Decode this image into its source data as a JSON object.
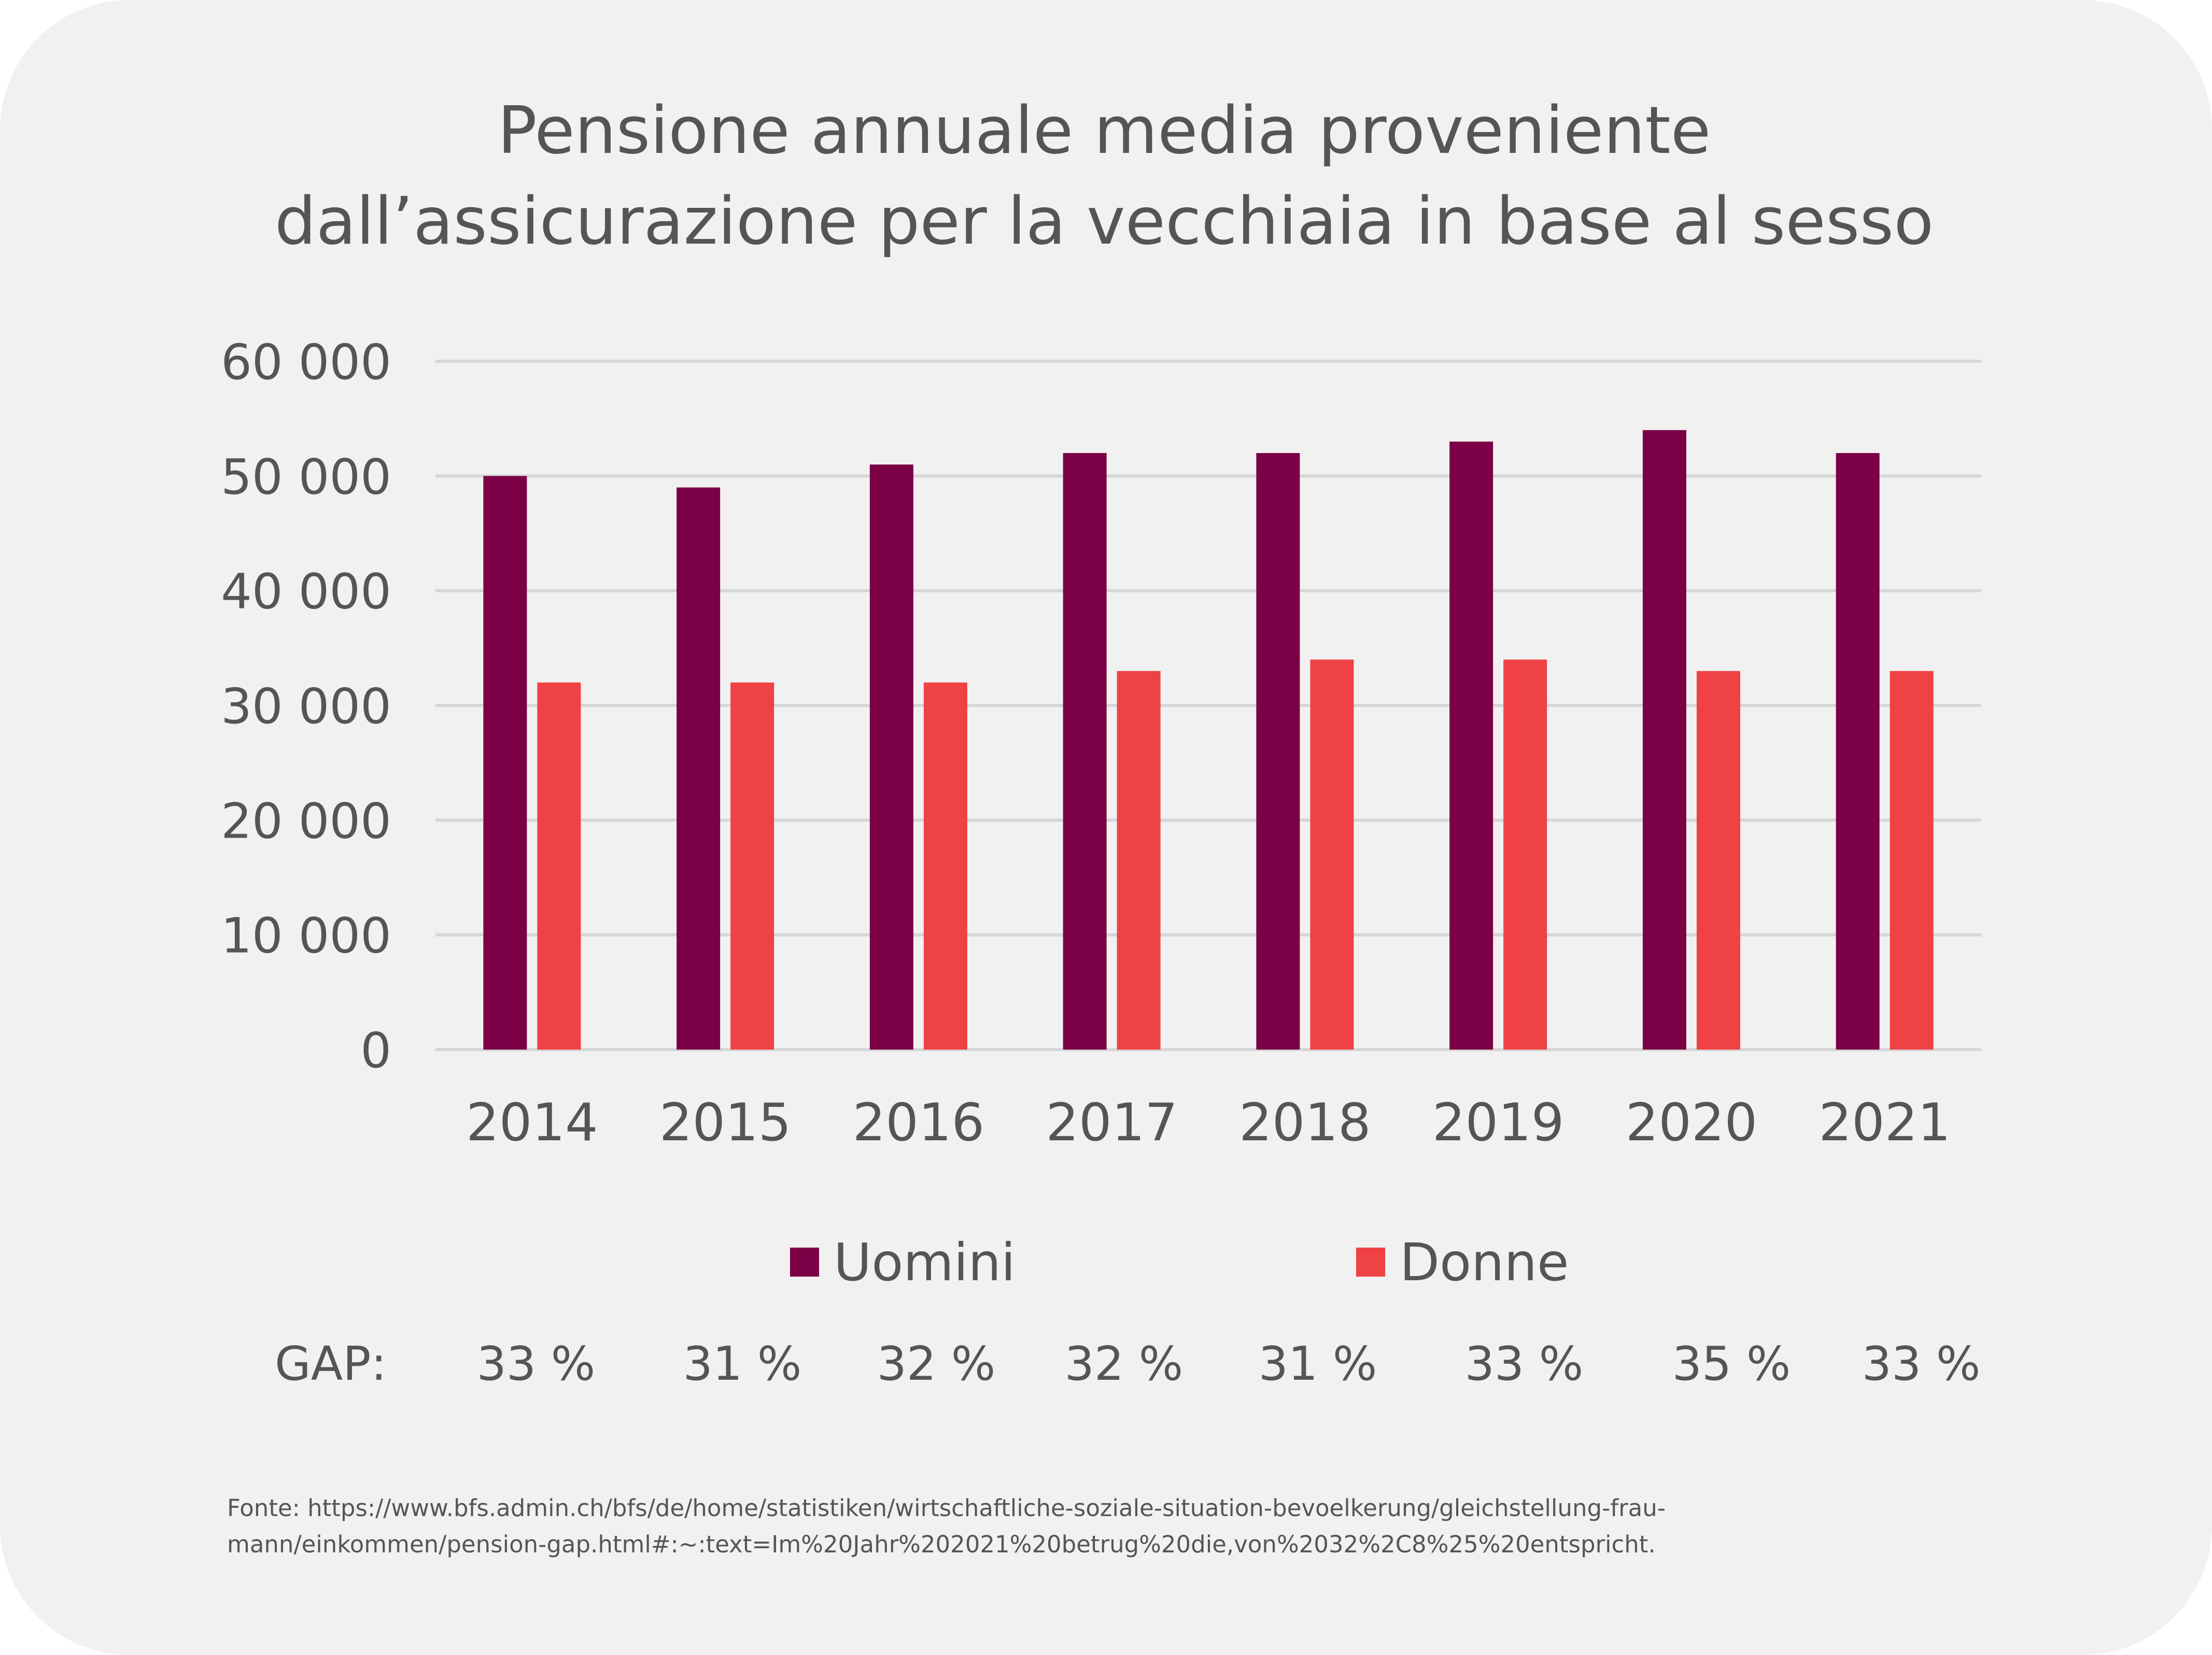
{
  "chart_data": {
    "type": "bar",
    "title_lines": [
      "Pensione annuale media proveniente",
      "dall’assicurazione per la vecchiaia in base al sesso"
    ],
    "categories": [
      "2014",
      "2015",
      "2016",
      "2017",
      "2018",
      "2019",
      "2020",
      "2021"
    ],
    "series": [
      {
        "name": "Uomini",
        "color": "#7b0046",
        "values": [
          50000,
          49000,
          51000,
          52000,
          52000,
          53000,
          54000,
          52000
        ]
      },
      {
        "name": "Donne",
        "color": "#ee4245",
        "values": [
          32000,
          32000,
          32000,
          33000,
          34000,
          34000,
          33000,
          33000
        ]
      }
    ],
    "ylim": [
      0,
      60000
    ],
    "yticks": [
      {
        "value": 0,
        "label": "0"
      },
      {
        "value": 10000,
        "label": "10 000"
      },
      {
        "value": 20000,
        "label": "20 000"
      },
      {
        "value": 30000,
        "label": "30 000"
      },
      {
        "value": 40000,
        "label": "40 000"
      },
      {
        "value": 50000,
        "label": "50 000"
      },
      {
        "value": 60000,
        "label": "60 000"
      }
    ],
    "grid": true,
    "legend_position": "bottom",
    "gap": {
      "label": "GAP:",
      "values": [
        "33 %",
        "31 %",
        "32 %",
        "32 %",
        "31 %",
        "33 %",
        "35 %",
        "33 %"
      ]
    },
    "source_lines": [
      "Fonte: https://www.bfs.admin.ch/bfs/de/home/statistiken/wirtschaftliche-soziale-situation-bevoelkerung/gleichstellung-frau-",
      "mann/einkommen/pension-gap.html#:~:text=Im%20Jahr%202021%20betrug%20die,von%2032%2C8%25%20entspricht."
    ]
  }
}
